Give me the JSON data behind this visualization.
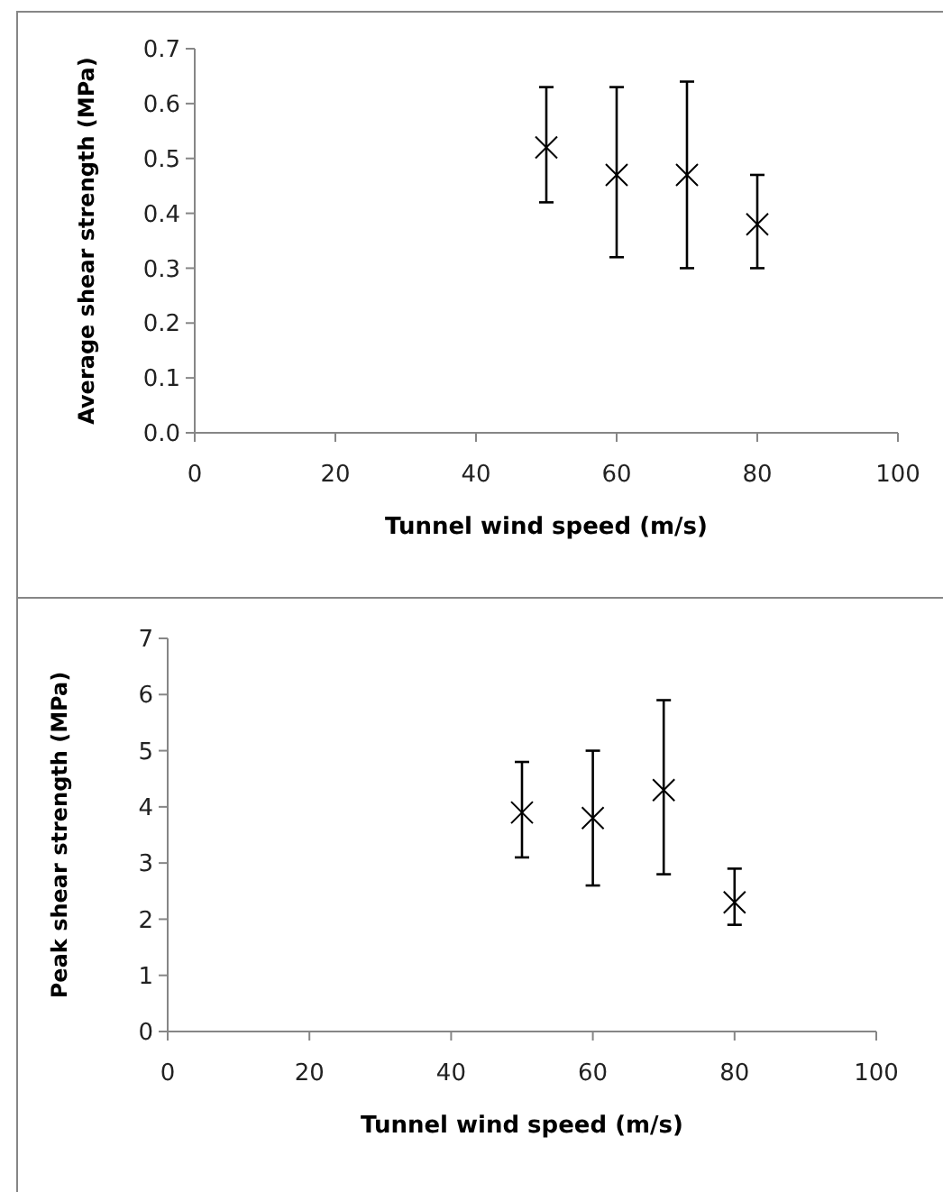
{
  "chart_data": [
    {
      "type": "scatter",
      "xlabel": "Tunnel wind speed (m/s)",
      "ylabel": "Average shear strength (MPa)",
      "marker": "cross",
      "grid": false,
      "x": [
        50,
        60,
        70,
        80
      ],
      "xlim": [
        0,
        100
      ],
      "xticks": [
        0,
        20,
        40,
        60,
        80,
        100
      ],
      "ylim": [
        0,
        0.7
      ],
      "yticks": [
        {
          "value": 0,
          "label": "0.0"
        },
        0.1,
        0.2,
        0.3,
        0.4,
        0.5,
        0.6,
        0.7
      ],
      "series": [
        {
          "color": "#000000",
          "values": [
            0.52,
            0.47,
            0.47,
            0.38
          ],
          "errors": [
            [
              0.42,
              0.63
            ],
            [
              0.32,
              0.63
            ],
            [
              0.3,
              0.64
            ],
            [
              0.3,
              0.47
            ]
          ]
        }
      ]
    },
    {
      "type": "scatter",
      "xlabel": "Tunnel wind speed (m/s)",
      "ylabel": "Peak shear strength (MPa)",
      "marker": "cross",
      "grid": false,
      "x": [
        50,
        60,
        70,
        80
      ],
      "xlim": [
        0,
        100
      ],
      "xticks": [
        0,
        20,
        40,
        60,
        80,
        100
      ],
      "ylim": [
        0,
        7
      ],
      "yticks": [
        0,
        1,
        2,
        3,
        4,
        5,
        6,
        7
      ],
      "series": [
        {
          "color": "#000000",
          "values": [
            3.9,
            3.8,
            4.3,
            2.3
          ],
          "errors": [
            [
              3.1,
              4.8
            ],
            [
              2.6,
              5.0
            ],
            [
              2.8,
              5.9
            ],
            [
              1.9,
              2.9
            ]
          ]
        }
      ]
    }
  ]
}
